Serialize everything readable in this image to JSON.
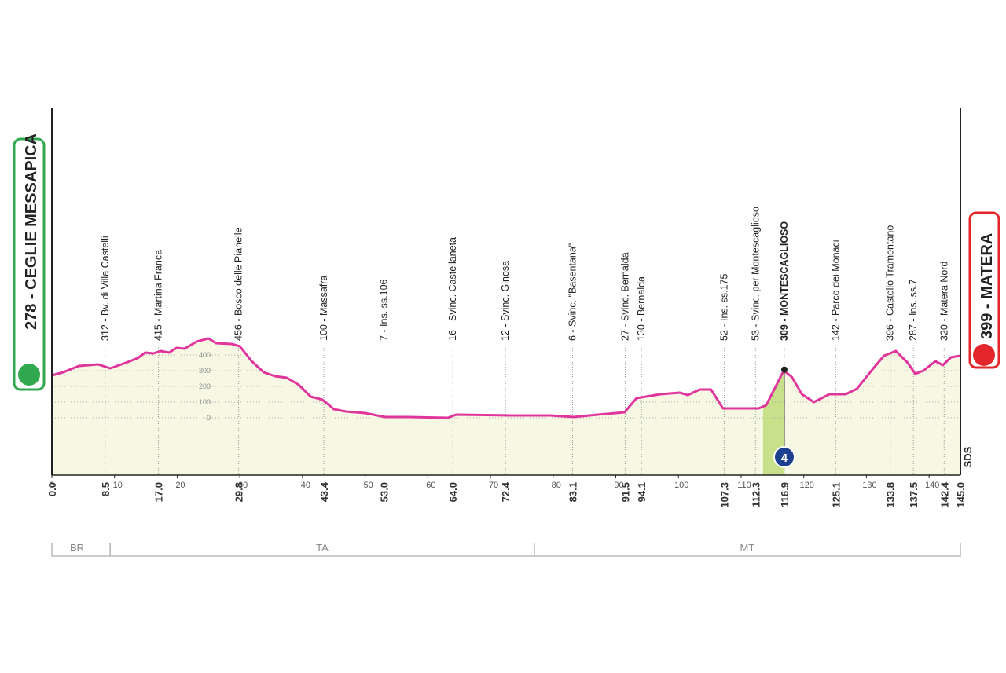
{
  "chart_data": {
    "type": "area",
    "start": "278 - CEGLIE MESSAPICA",
    "finish": "399 - MATERA",
    "logo": "SDS",
    "color": "#e0359c",
    "fill": "#f7f8e4",
    "xlim": [
      0,
      145
    ],
    "ylim": [
      -365,
      1970
    ],
    "xticks": [
      0,
      10,
      20,
      30,
      40,
      50,
      60,
      70,
      80,
      90,
      100,
      110,
      120,
      130,
      140
    ],
    "yticks": [
      0,
      100,
      200,
      300,
      400
    ],
    "grid": true,
    "x": [
      0,
      1.8,
      4.3,
      7.4,
      9.3,
      11.8,
      13.7,
      14.9,
      16.2,
      17.4,
      18.7,
      19.9,
      21.2,
      23.1,
      25.0,
      26.2,
      28.7,
      30.0,
      31.9,
      33.8,
      35.6,
      37.5,
      39.4,
      41.3,
      43.2,
      45.0,
      46.9,
      50.0,
      53.2,
      56.9,
      63.2,
      64.5,
      73.3,
      79.5,
      83.3,
      87.1,
      91.4,
      93.3,
      97.1,
      100.2,
      101.5,
      103.4,
      105.2,
      107.1,
      112.8,
      114.0,
      116.8,
      118.1,
      119.7,
      121.6,
      124.1,
      126.7,
      128.5,
      131.0,
      132.8,
      134.7,
      136.6,
      137.8,
      139.1,
      141.0,
      142.2,
      143.5,
      145.0
    ],
    "values": [
      270,
      290,
      330,
      340,
      315,
      350,
      380,
      415,
      410,
      425,
      415,
      445,
      440,
      485,
      505,
      475,
      470,
      455,
      360,
      290,
      265,
      255,
      210,
      135,
      115,
      55,
      40,
      30,
      5,
      5,
      0,
      20,
      15,
      15,
      5,
      20,
      35,
      125,
      150,
      160,
      145,
      180,
      180,
      60,
      60,
      80,
      300,
      260,
      150,
      100,
      150,
      150,
      185,
      310,
      395,
      425,
      350,
      280,
      300,
      360,
      335,
      385,
      395
    ],
    "waypoint_km": [
      {
        "value": 0,
        "label": "0.0"
      },
      8.5,
      {
        "value": 17,
        "label": "17.0"
      },
      29.8,
      43.4,
      {
        "value": 53,
        "label": "53.0"
      },
      {
        "value": 64,
        "label": "64.0"
      },
      72.4,
      83.1,
      91.5,
      94.1,
      107.3,
      112.3,
      116.9,
      125.1,
      133.8,
      137.5,
      142.4,
      {
        "value": 145,
        "label": "145.0"
      }
    ],
    "waypoint_labels": [
      null,
      "312 - Bv. di Villa Castelli",
      "415 - Martina Franca",
      "456 - Bosco delle Pianelle",
      "100 - Massafra",
      "7 - Ins. ss.106",
      "16 - Svinc. Castellaneta",
      "12 - Svinc. Ginosa",
      "6 - Svinc. \"Basentana\"",
      "27 - Svinc. Bernalda",
      "130 - Bernalda",
      "52 - Ins. ss.175",
      "53 - Svinc. per Montescaglioso",
      "309 - MONTESCAGLIOSO",
      "142 - Parco dei Monaci",
      "396 - Castello Tramontano",
      "287 - Ins. ss.7",
      "320 - Matera Nord",
      null
    ],
    "climb": {
      "from": 113.5,
      "to": 116.9,
      "category": "4"
    },
    "regions": [
      {
        "name": "BR",
        "from": 0,
        "to": 9.3
      },
      {
        "name": "TA",
        "from": 9.3,
        "to": 77
      },
      {
        "name": "MT",
        "from": 77,
        "to": 145
      }
    ]
  }
}
